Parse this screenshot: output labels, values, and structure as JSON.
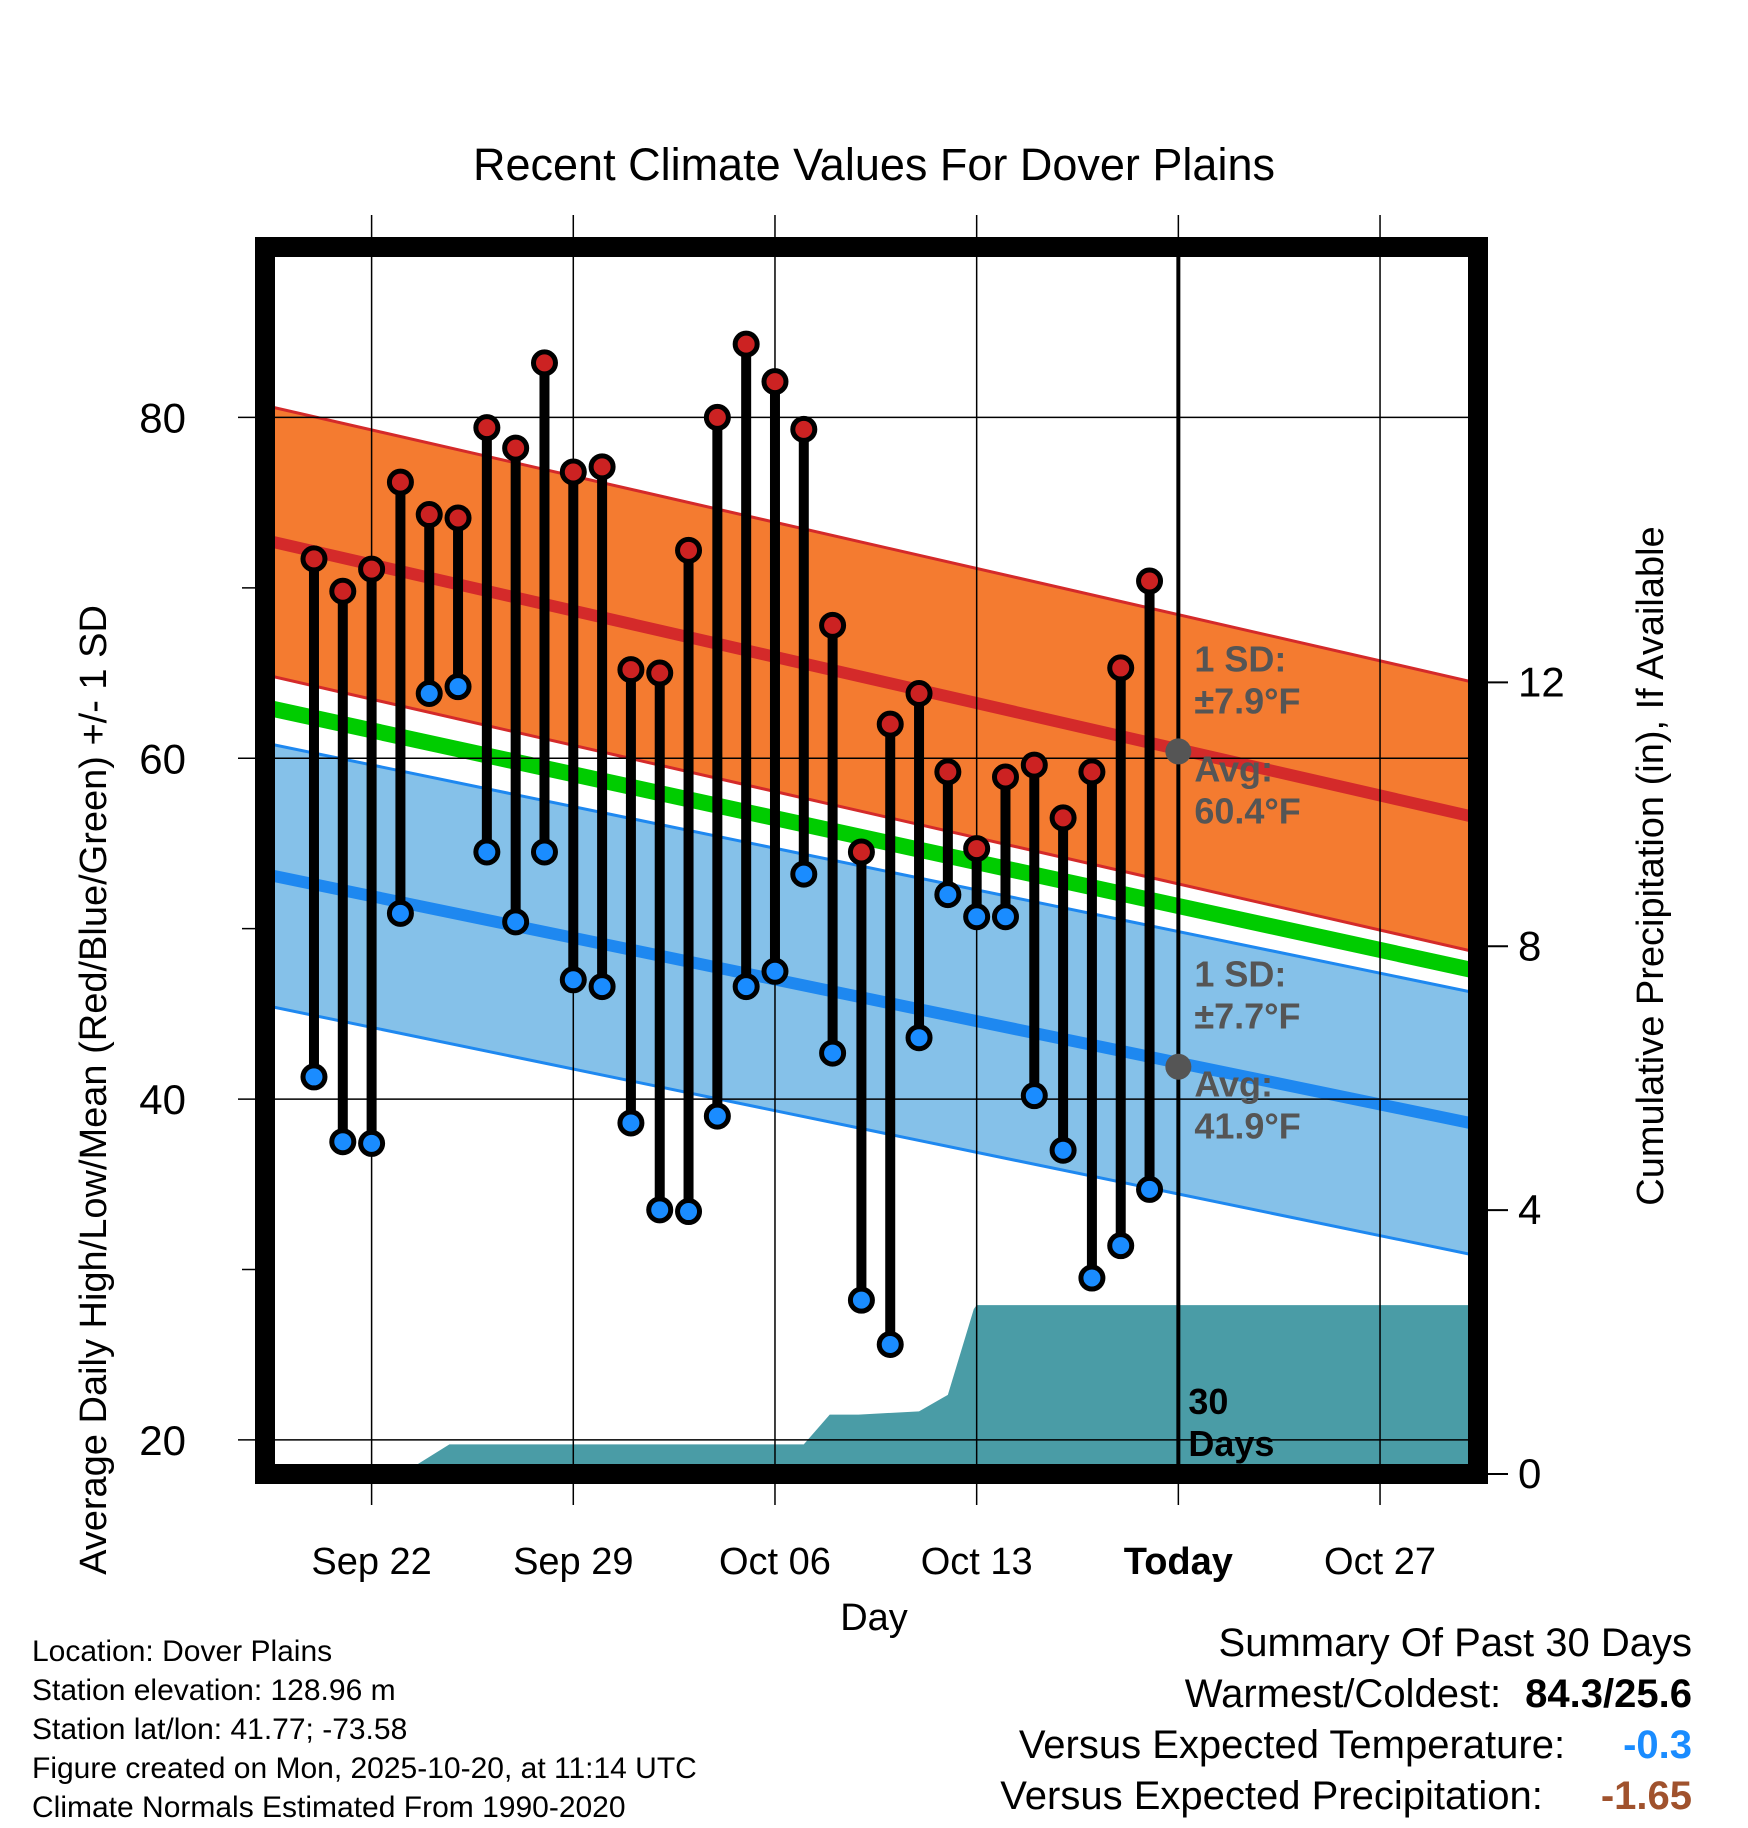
{
  "chart_data": {
    "type": "line",
    "title": "Recent Climate Values For Dover Plains",
    "xlabel": "Day",
    "ylabel": "Average Daily High/Low/Mean (Red/Blue/Green) +/- 1 SD",
    "y2label": "Cumulative Precipitation (in), If Available",
    "ylim": [
      18,
      90
    ],
    "y_ticks": [
      "20",
      "40",
      "60",
      "80"
    ],
    "y_tick_values": [
      20,
      40,
      60,
      80
    ],
    "y2lim": [
      0,
      18.6
    ],
    "y2_ticks": [
      "0",
      "4",
      "8",
      "12"
    ],
    "y2_tick_values": [
      0,
      4,
      8,
      12
    ],
    "x_range_days": [
      -31.7,
      10.4
    ],
    "x_ticks": [
      "Sep 22",
      "Sep 29",
      "Oct 06",
      "Oct 13",
      "Today",
      "Oct 27"
    ],
    "x_tick_days": [
      -28,
      -21,
      -14,
      -7,
      0,
      7
    ],
    "today_label": "30 Days",
    "normal_high": {
      "start": 72.8,
      "end": 56.5,
      "sd": 7.9
    },
    "normal_low": {
      "start": 53.2,
      "end": 38.5,
      "sd": 7.7
    },
    "normal_mean": {
      "start": 63.0,
      "end": 47.5
    },
    "annotations": {
      "high_sd_line1": "1 SD:",
      "high_sd_line2": "±7.9°F",
      "high_avg_line1": "Avg:",
      "high_avg_line2": "60.4°F",
      "low_sd_line1": "1 SD:",
      "low_sd_line2": "±7.7°F",
      "low_avg_line1": "Avg:",
      "low_avg_line2": "41.9°F",
      "today_high_avg": 60.4,
      "today_low_avg": 41.9
    },
    "series": [
      {
        "name": "Daily High",
        "color": "#cc2222",
        "days": [
          -30,
          -29,
          -28,
          -27,
          -26,
          -25,
          -24,
          -23,
          -22,
          -21,
          -20,
          -19,
          -18,
          -17,
          -16,
          -15,
          -14,
          -13,
          -12,
          -11,
          -10,
          -9,
          -8,
          -7,
          -6,
          -5,
          -4,
          -3,
          -2,
          -1
        ],
        "values": [
          71.7,
          69.8,
          71.1,
          76.2,
          74.3,
          74.1,
          79.4,
          78.2,
          83.2,
          76.8,
          77.1,
          65.2,
          65.0,
          72.2,
          80.0,
          84.3,
          82.1,
          79.3,
          67.8,
          54.5,
          62.0,
          63.8,
          59.2,
          54.7,
          58.9,
          59.6,
          56.5,
          59.2,
          65.3,
          70.4
        ]
      },
      {
        "name": "Daily Low",
        "color": "#1a8cff",
        "days": [
          -30,
          -29,
          -28,
          -27,
          -26,
          -25,
          -24,
          -23,
          -22,
          -21,
          -20,
          -19,
          -18,
          -17,
          -16,
          -15,
          -14,
          -13,
          -12,
          -11,
          -10,
          -9,
          -8,
          -7,
          -6,
          -5,
          -4,
          -3,
          -2,
          -1
        ],
        "values": [
          41.3,
          37.5,
          37.4,
          50.9,
          63.8,
          64.2,
          54.5,
          50.4,
          54.5,
          47.0,
          46.6,
          38.6,
          33.5,
          33.4,
          39.0,
          46.6,
          47.5,
          53.2,
          42.7,
          28.2,
          25.6,
          43.6,
          52.0,
          50.7,
          50.7,
          40.2,
          37.0,
          29.5,
          31.4,
          34.7
        ]
      },
      {
        "name": "Cumulative Precipitation",
        "color": "#4a9ca6",
        "days": [
          -29.3,
          -27.3,
          -26.4,
          -25.3,
          -13.0,
          -12.1,
          -11.1,
          -9.0,
          -8.0,
          -7.1,
          -7.0,
          10.4
        ],
        "values": [
          0.0,
          0.0,
          0.15,
          0.45,
          0.45,
          0.9,
          0.9,
          0.95,
          1.2,
          2.5,
          2.56,
          2.56
        ]
      }
    ]
  },
  "info": {
    "location": "Location: Dover Plains",
    "elevation": "Station elevation: 128.96 m",
    "latlon": "Station lat/lon: 41.77; -73.58",
    "created": "Figure created on Mon, 2025-10-20, at 11:14 UTC",
    "normals": "Climate Normals Estimated From 1990-2020"
  },
  "summary": {
    "title": "Summary Of Past 30 Days",
    "warm_cold_label": "Warmest/Coldest:",
    "warm_cold_value": "84.3/25.6",
    "temp_label": "Versus Expected Temperature:",
    "temp_value": "-0.3",
    "temp_color": "#1a8cff",
    "precip_label": "Versus Expected Precipitation:",
    "precip_value": "-1.65",
    "precip_color": "#a0522d"
  }
}
